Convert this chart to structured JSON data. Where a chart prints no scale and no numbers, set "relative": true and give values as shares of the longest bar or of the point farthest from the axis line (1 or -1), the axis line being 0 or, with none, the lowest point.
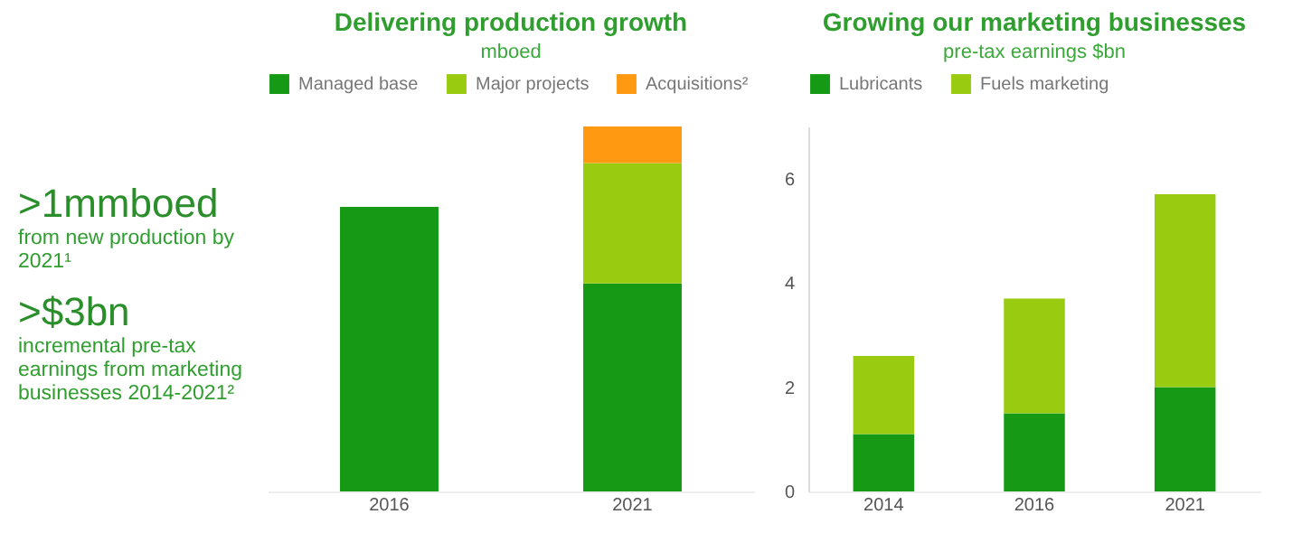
{
  "chart_data": [
    {
      "type": "other",
      "annotations": [
        ">1mmboed",
        "from new production by 2021¹",
        ">$3bn",
        "incremental pre-tax earnings from marketing businesses 2014-2021²"
      ]
    },
    {
      "type": "bar",
      "title": "Delivering production growth",
      "subtitle": "mboed",
      "categories": [
        "2016",
        "2021"
      ],
      "stacked": true,
      "relative": true,
      "legend": "top",
      "grid": false,
      "series": [
        {
          "name": "Managed base",
          "color": "#169a16",
          "values": [
            0.78,
            0.57
          ]
        },
        {
          "name": "Major projects",
          "color": "#99cc11",
          "values": [
            null,
            0.33
          ]
        },
        {
          "name": "Acquisitions²",
          "color": "#ff9911",
          "values": [
            null,
            0.1
          ]
        }
      ]
    },
    {
      "type": "bar",
      "title": "Growing our marketing businesses",
      "subtitle": "pre-tax earnings $bn",
      "categories": [
        "2014",
        "2016",
        "2021"
      ],
      "stacked": true,
      "legend": "top",
      "grid": false,
      "ylim": [
        0,
        7
      ],
      "yticks": [
        0,
        2,
        4,
        6
      ],
      "series": [
        {
          "name": "Lubricants",
          "color": "#169a16",
          "values": [
            1.1,
            1.5,
            2.0
          ]
        },
        {
          "name": "Fuels marketing",
          "color": "#99cc11",
          "values": [
            1.5,
            2.2,
            3.7
          ]
        }
      ]
    }
  ]
}
